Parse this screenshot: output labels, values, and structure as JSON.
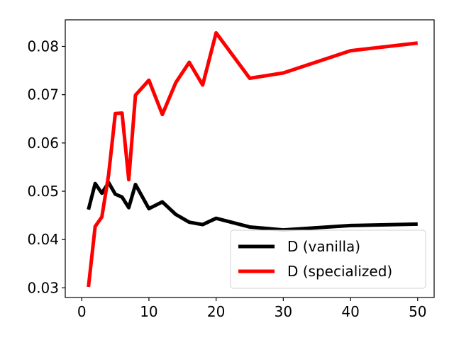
{
  "chart_data": {
    "type": "line",
    "title": "",
    "xlabel": "",
    "ylabel": "",
    "xlim": [
      -2.45,
      52.45
    ],
    "ylim": [
      0.028,
      0.0855
    ],
    "grid": false,
    "legend_position": "bottom-right",
    "x_ticks": [
      {
        "value": 0,
        "label": "0"
      },
      {
        "value": 10,
        "label": "10"
      },
      {
        "value": 20,
        "label": "20"
      },
      {
        "value": 30,
        "label": "30"
      },
      {
        "value": 40,
        "label": "40"
      },
      {
        "value": 50,
        "label": "50"
      }
    ],
    "y_ticks": [
      {
        "value": 0.03,
        "label": "0.03"
      },
      {
        "value": 0.04,
        "label": "0.04"
      },
      {
        "value": 0.05,
        "label": "0.05"
      },
      {
        "value": 0.06,
        "label": "0.06"
      },
      {
        "value": 0.07,
        "label": "0.07"
      },
      {
        "value": 0.08,
        "label": "0.08"
      }
    ],
    "series": [
      {
        "name": "D (vanilla)",
        "color": "#000000",
        "x": [
          1,
          2,
          3,
          4,
          5,
          6,
          7,
          8,
          10,
          12,
          14,
          16,
          18,
          20,
          25,
          30,
          40,
          50
        ],
        "y": [
          0.0462,
          0.0516,
          0.0496,
          0.0518,
          0.0494,
          0.0488,
          0.0466,
          0.0514,
          0.0464,
          0.0478,
          0.0452,
          0.0436,
          0.0431,
          0.0444,
          0.0426,
          0.042,
          0.0429,
          0.0432
        ]
      },
      {
        "name": "D (specialized)",
        "color": "#ff0000",
        "x": [
          1,
          2,
          3,
          4,
          5,
          6,
          7,
          8,
          10,
          12,
          14,
          16,
          18,
          20,
          25,
          30,
          40,
          50
        ],
        "y": [
          0.0302,
          0.0427,
          0.0447,
          0.0534,
          0.0661,
          0.0662,
          0.0524,
          0.0699,
          0.073,
          0.0659,
          0.0725,
          0.0767,
          0.072,
          0.0828,
          0.0734,
          0.0745,
          0.0791,
          0.0807
        ]
      }
    ]
  }
}
